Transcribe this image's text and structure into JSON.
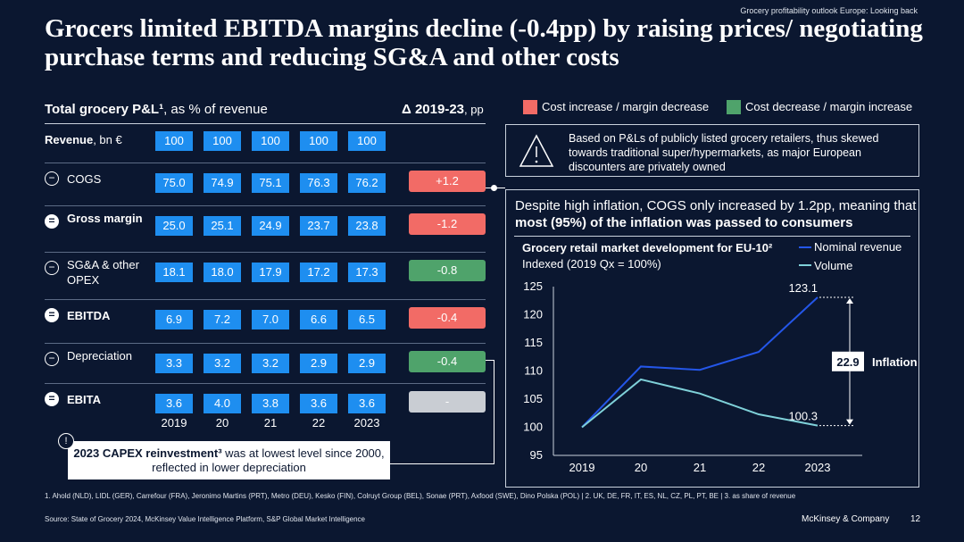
{
  "header": {
    "tag": "Grocery profitability outlook Europe: Looking back",
    "title": "Grocers limited EBITDA margins decline (-0.4pp) by raising prices/ negotiating purchase terms and reducing SG&A and other costs"
  },
  "table": {
    "title_bold": "Total grocery P&L¹",
    "title_rest": ", as % of revenue",
    "delta_title": "Δ 2019-23",
    "delta_unit": ", pp",
    "revenue_label": "Revenue",
    "revenue_unit": ", bn €",
    "revenue_values": [
      "100",
      "100",
      "100",
      "100",
      "100"
    ],
    "rows": [
      {
        "icon": "−",
        "label": "COGS",
        "values": [
          "75.0",
          "74.9",
          "75.1",
          "76.3",
          "76.2"
        ],
        "delta": "+1.2",
        "delta_color": "red"
      },
      {
        "icon": "=",
        "label": "Gross margin",
        "values": [
          "25.0",
          "25.1",
          "24.9",
          "23.7",
          "23.8"
        ],
        "delta": "-1.2",
        "delta_color": "red"
      },
      {
        "icon": "−",
        "label": "SG&A & other OPEX",
        "values": [
          "18.1",
          "18.0",
          "17.9",
          "17.2",
          "17.3"
        ],
        "delta": "-0.8",
        "delta_color": "green"
      },
      {
        "icon": "=",
        "label": "EBITDA",
        "values": [
          "6.9",
          "7.2",
          "7.0",
          "6.6",
          "6.5"
        ],
        "delta": "-0.4",
        "delta_color": "red"
      },
      {
        "icon": "−",
        "label": "Depreciation",
        "values": [
          "3.3",
          "3.2",
          "3.2",
          "2.9",
          "2.9"
        ],
        "delta": "-0.4",
        "delta_color": "green"
      },
      {
        "icon": "=",
        "label": "EBITA",
        "values": [
          "3.6",
          "4.0",
          "3.8",
          "3.6",
          "3.6"
        ],
        "delta": "-",
        "delta_color": "grey"
      }
    ],
    "years": [
      "2019",
      "20",
      "21",
      "22",
      "2023"
    ]
  },
  "legend": {
    "increase": "Cost increase / margin decrease",
    "decrease": "Cost decrease / margin increase",
    "red": "#f26b66",
    "green": "#4fa36b"
  },
  "note": "Based on P&Ls of publicly listed grocery retailers, thus skewed towards traditional super/hypermarkets, as major European discounters are privately owned",
  "panel": {
    "text_a": "Despite high inflation, COGS only increased by 1.2pp, meaning that ",
    "text_b": "most (95%) of the inflation was passed to consumers"
  },
  "chart_data": {
    "type": "line",
    "title": "Grocery retail market development for EU-10²",
    "subtitle": "Indexed (2019 Qx = 100%)",
    "categories": [
      "2019",
      "20",
      "21",
      "22",
      "2023"
    ],
    "ylim": [
      95,
      125
    ],
    "yticks": [
      "125",
      "120",
      "115",
      "110",
      "105",
      "100",
      "95"
    ],
    "series": [
      {
        "name": "Nominal revenue",
        "color": "#2456e8",
        "values": [
          100,
          110.8,
          110.2,
          113.4,
          123.1
        ]
      },
      {
        "name": "Volume",
        "color": "#7fd1d9",
        "values": [
          100,
          108.5,
          106,
          102.3,
          100.3
        ]
      }
    ],
    "annotations": {
      "top": "123.1",
      "bottom": "100.3",
      "gap": "22.9",
      "gap_label": "Inflation"
    }
  },
  "capex": {
    "bold": "2023 CAPEX reinvestment³",
    "rest": " was at lowest level since 2000, reflected in lower depreciation"
  },
  "footer": {
    "footnote": "1. Ahold (NLD), LIDL (GER), Carrefour (FRA), Jeronimo Martins (PRT), Metro (DEU), Kesko (FIN), Colruyt Group (BEL), Sonae (PRT), Axfood (SWE), Dino Polska (POL) | 2. UK, DE, FR, IT, ES, NL, CZ, PL, PT, BE | 3. as share of revenue",
    "source": "Source: State of Grocery 2024, McKinsey Value Intelligence Platform, S&P Global Market Intelligence",
    "brand": "McKinsey & Company",
    "page": "12"
  }
}
